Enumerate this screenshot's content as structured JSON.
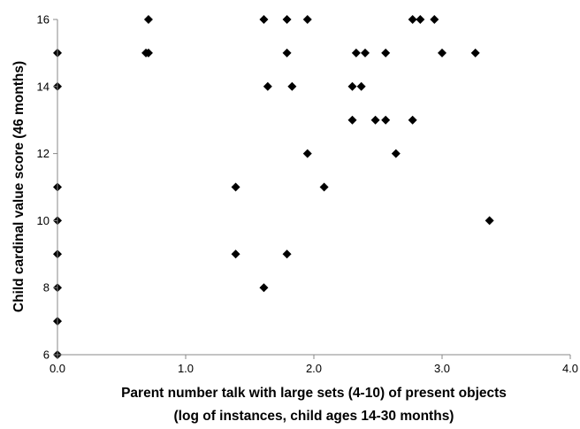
{
  "chart_data": {
    "type": "scatter",
    "title": "",
    "xlabel_lines": [
      "Parent number talk with large sets (4-10) of present objects",
      "(log of instances, child ages 14-30 months)"
    ],
    "ylabel": "Child cardinal value score (46 months)",
    "xlim": [
      0,
      4
    ],
    "ylim": [
      6,
      16
    ],
    "x_ticks": [
      "0.0",
      "1.0",
      "2.0",
      "3.0",
      "4.0"
    ],
    "y_ticks": [
      "6",
      "8",
      "10",
      "12",
      "14",
      "16"
    ],
    "grid": false,
    "marker": "diamond",
    "marker_color": "#000000",
    "points": [
      {
        "x": 0.0,
        "y": 15
      },
      {
        "x": 0.0,
        "y": 14
      },
      {
        "x": 0.0,
        "y": 11
      },
      {
        "x": 0.0,
        "y": 10
      },
      {
        "x": 0.0,
        "y": 9
      },
      {
        "x": 0.0,
        "y": 8
      },
      {
        "x": 0.0,
        "y": 7
      },
      {
        "x": 0.0,
        "y": 6
      },
      {
        "x": 0.69,
        "y": 15
      },
      {
        "x": 0.71,
        "y": 15
      },
      {
        "x": 0.71,
        "y": 16
      },
      {
        "x": 1.39,
        "y": 11
      },
      {
        "x": 1.39,
        "y": 9
      },
      {
        "x": 1.61,
        "y": 16
      },
      {
        "x": 1.61,
        "y": 8
      },
      {
        "x": 1.64,
        "y": 14
      },
      {
        "x": 1.79,
        "y": 16
      },
      {
        "x": 1.79,
        "y": 15
      },
      {
        "x": 1.79,
        "y": 9
      },
      {
        "x": 1.83,
        "y": 14
      },
      {
        "x": 1.95,
        "y": 16
      },
      {
        "x": 1.95,
        "y": 12
      },
      {
        "x": 2.08,
        "y": 11
      },
      {
        "x": 2.3,
        "y": 13
      },
      {
        "x": 2.3,
        "y": 14
      },
      {
        "x": 2.33,
        "y": 15
      },
      {
        "x": 2.37,
        "y": 14
      },
      {
        "x": 2.4,
        "y": 15
      },
      {
        "x": 2.48,
        "y": 13
      },
      {
        "x": 2.56,
        "y": 15
      },
      {
        "x": 2.56,
        "y": 13
      },
      {
        "x": 2.64,
        "y": 12
      },
      {
        "x": 2.77,
        "y": 13
      },
      {
        "x": 2.77,
        "y": 16
      },
      {
        "x": 2.83,
        "y": 16
      },
      {
        "x": 2.94,
        "y": 16
      },
      {
        "x": 3.0,
        "y": 15
      },
      {
        "x": 3.26,
        "y": 15
      },
      {
        "x": 3.37,
        "y": 10
      }
    ]
  }
}
